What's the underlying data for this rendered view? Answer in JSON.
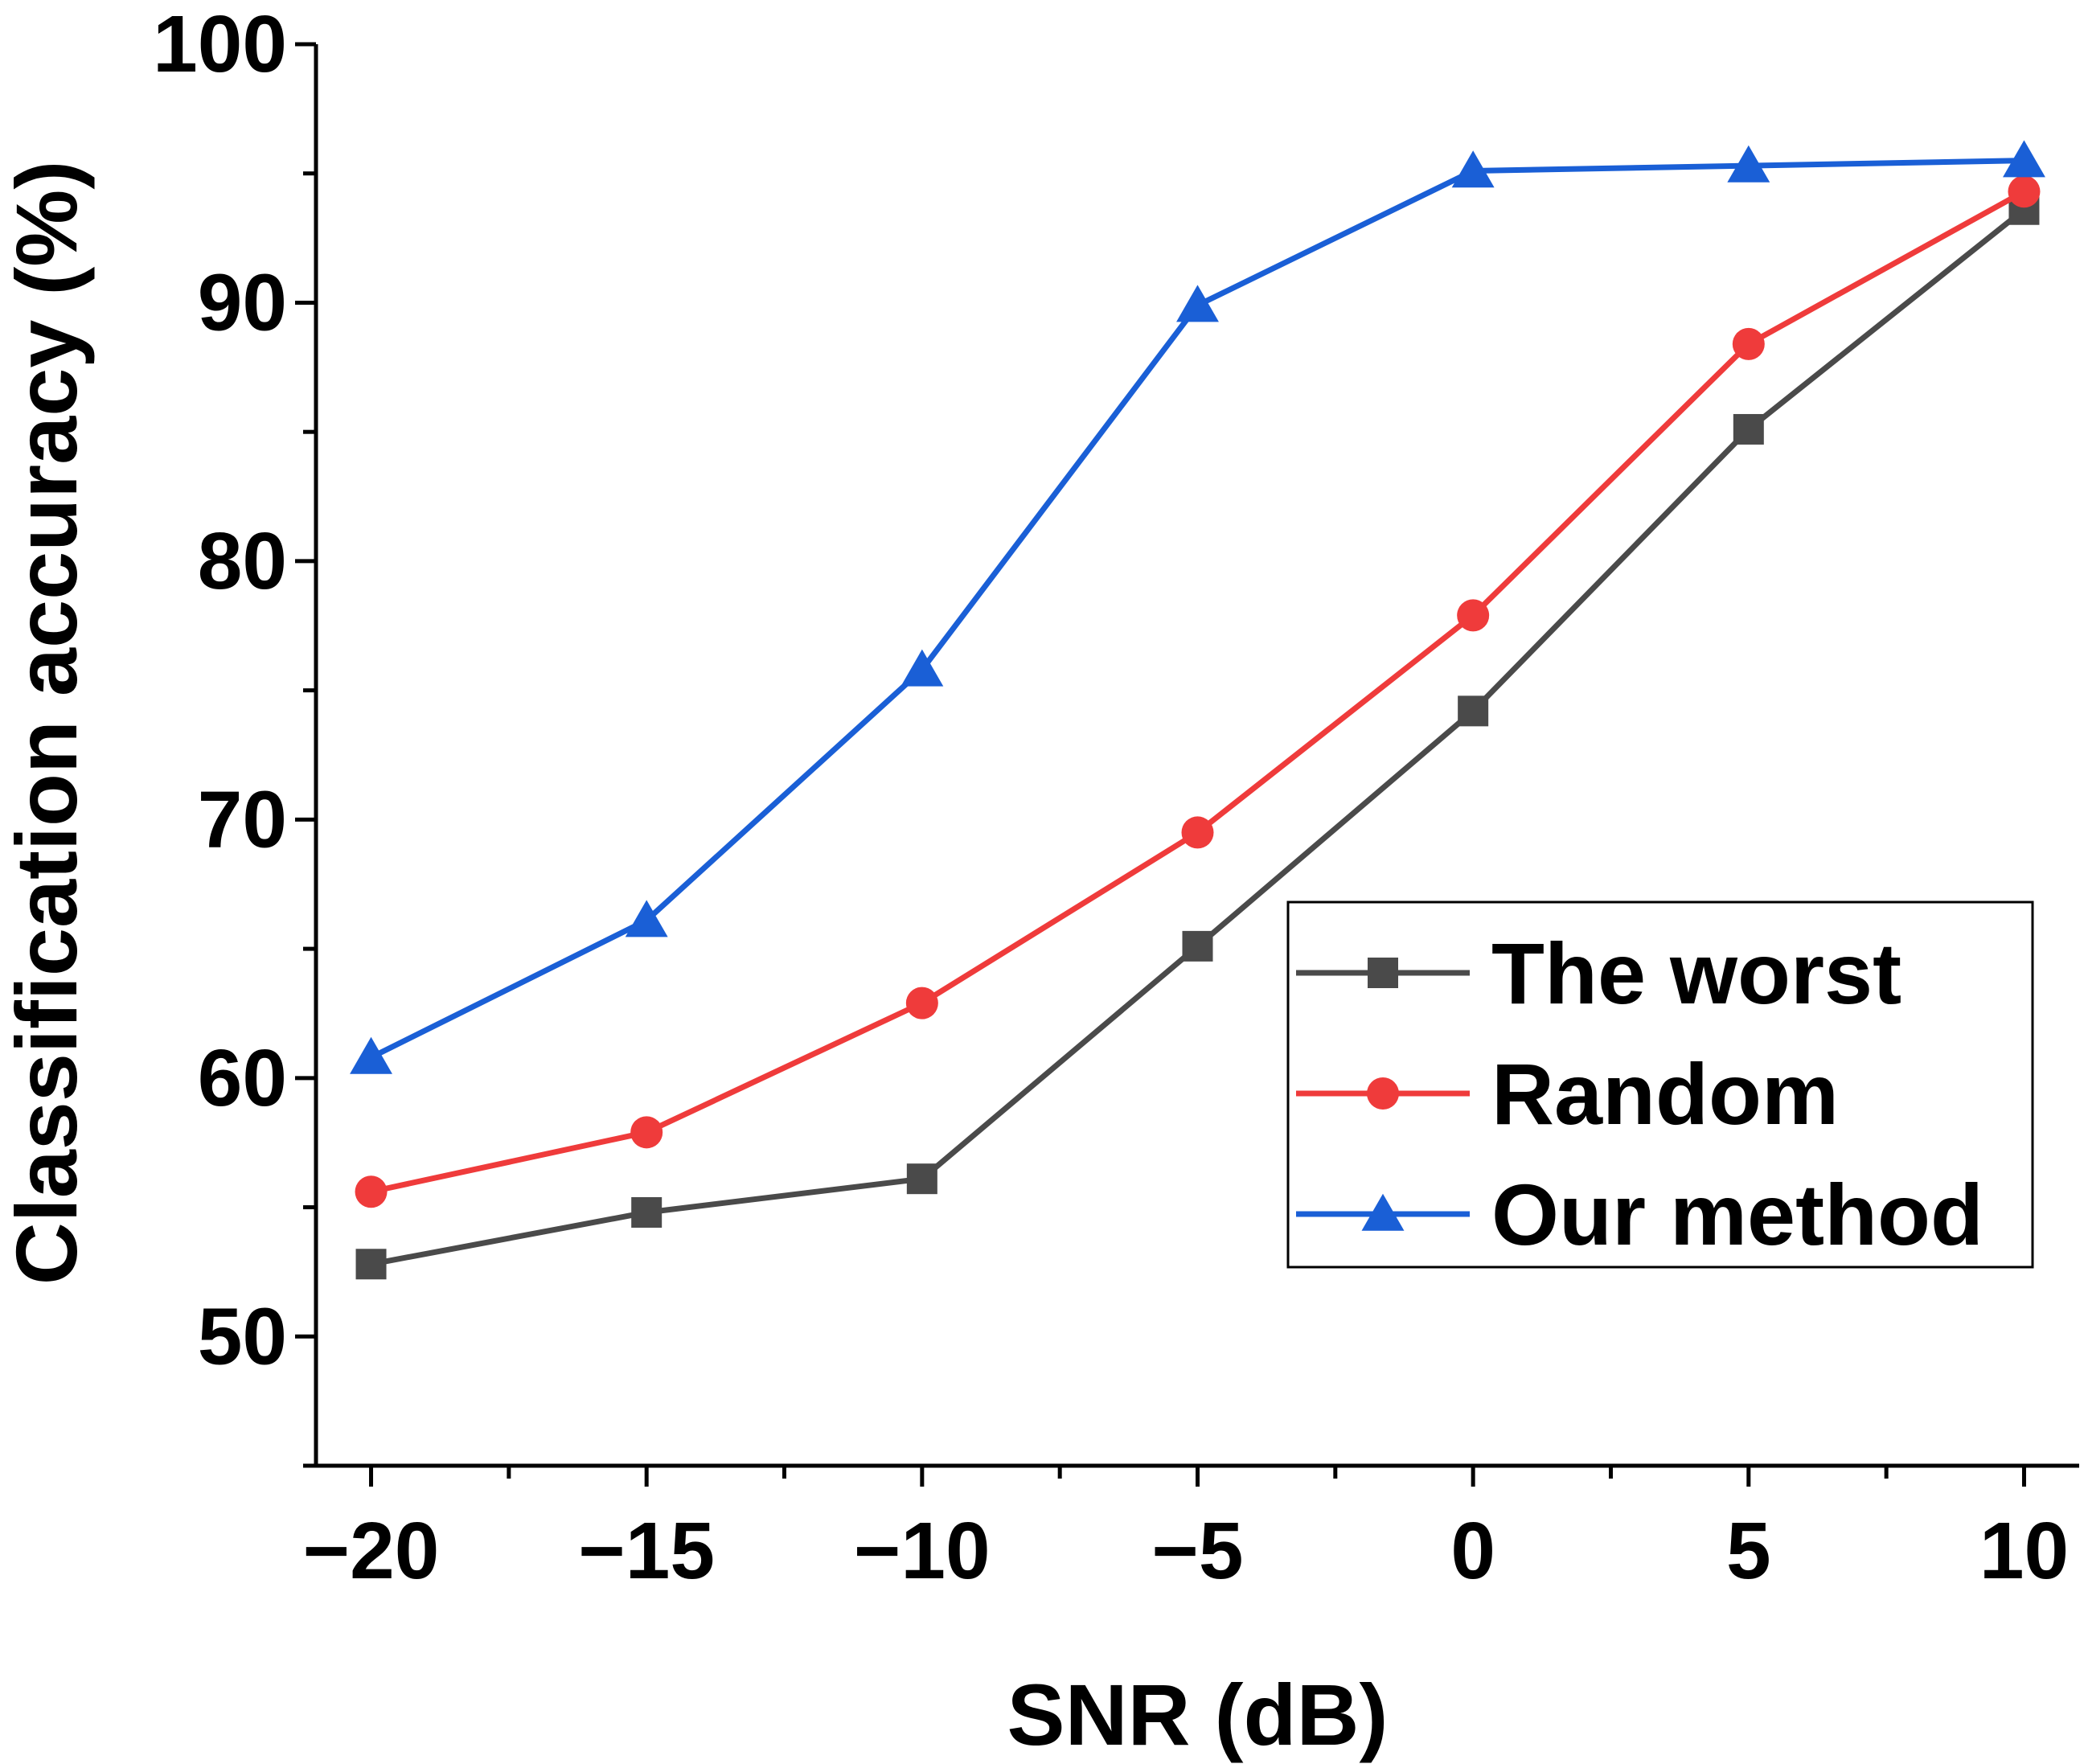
{
  "chart_data": {
    "type": "line",
    "title": "",
    "xlabel": "SNR (dB)",
    "ylabel": "Classification accuracy (%)",
    "x": [
      -20,
      -15,
      -10,
      -5,
      0,
      5,
      10
    ],
    "x_tick_labels": [
      "−20",
      "−15",
      "−10",
      "−5",
      "0",
      "5",
      "10"
    ],
    "y_ticks": [
      50,
      60,
      70,
      80,
      90,
      100
    ],
    "y_tick_labels": [
      "50",
      "60",
      "70",
      "80",
      "90",
      "100"
    ],
    "xlim": [
      -21,
      11
    ],
    "ylim": [
      45,
      100
    ],
    "grid": false,
    "legend_position": "lower-right",
    "series": [
      {
        "name": "The worst",
        "color": "#4a4a4a",
        "marker": "square",
        "values": [
          52.8,
          54.8,
          56.1,
          65.1,
          74.2,
          85.1,
          93.6
        ]
      },
      {
        "name": "Random",
        "color": "#ef3b3b",
        "marker": "circle",
        "values": [
          55.6,
          57.9,
          62.9,
          69.5,
          77.9,
          88.4,
          94.3
        ]
      },
      {
        "name": "Our method",
        "color": "#1a5fd6",
        "marker": "triangle",
        "values": [
          60.8,
          66.1,
          75.8,
          89.9,
          95.1,
          95.3,
          95.5
        ]
      }
    ]
  }
}
